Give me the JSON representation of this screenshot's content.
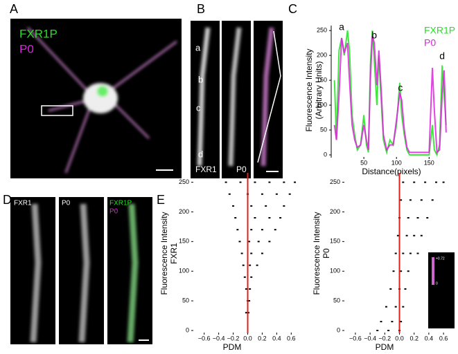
{
  "panels": {
    "A": {
      "label": "A",
      "legend": [
        "FXR1P",
        "P0"
      ]
    },
    "B": {
      "label": "B",
      "letters": [
        "a",
        "b",
        "c",
        "d"
      ],
      "channels": [
        "FXR1",
        "P0"
      ]
    },
    "C": {
      "label": "C"
    },
    "D": {
      "label": "D",
      "channels": [
        "FXR1",
        "P0",
        "FXR1P",
        "P0"
      ]
    },
    "E": {
      "label": "E",
      "inset_scale": [
        "+0.72",
        "0"
      ]
    }
  },
  "chart_data": [
    {
      "type": "line",
      "x_label": "Distance(pixels)",
      "y_label": [
        "Fluorescence Intensity",
        "(Arbitrary Units)"
      ],
      "annotations": [
        "a",
        "b",
        "c",
        "d"
      ],
      "x": [
        5,
        8,
        12,
        16,
        20,
        25,
        28,
        32,
        36,
        40,
        45,
        50,
        54,
        57,
        60,
        63,
        66,
        70,
        73,
        77,
        80,
        85,
        90,
        95,
        100,
        105,
        108,
        112,
        116,
        120,
        140,
        150,
        155,
        158,
        162,
        166,
        170,
        173,
        176
      ],
      "series": [
        {
          "name": "FXR1P",
          "color": "#22e022",
          "values": [
            150,
            30,
            210,
            235,
            200,
            250,
            210,
            80,
            40,
            10,
            20,
            80,
            20,
            5,
            180,
            250,
            190,
            100,
            200,
            100,
            30,
            5,
            30,
            20,
            60,
            145,
            80,
            40,
            10,
            0,
            0,
            0,
            60,
            10,
            0,
            20,
            180,
            120,
            60
          ]
        },
        {
          "name": "P0",
          "color": "#e020e0",
          "values": [
            60,
            30,
            120,
            235,
            205,
            225,
            150,
            60,
            30,
            15,
            20,
            60,
            30,
            10,
            150,
            240,
            225,
            140,
            210,
            120,
            40,
            10,
            20,
            20,
            70,
            125,
            110,
            50,
            15,
            5,
            5,
            5,
            175,
            90,
            5,
            10,
            120,
            170,
            45
          ]
        }
      ],
      "xlim": [
        0,
        190
      ],
      "ylim": [
        0,
        260
      ],
      "xticks": [
        50,
        100,
        150
      ],
      "yticks": [
        0,
        50,
        100,
        150,
        200,
        250
      ]
    },
    {
      "type": "scatter",
      "x_label": "PDM",
      "y_label": [
        "Fluorescence Intensity",
        "FXR1"
      ],
      "color": "#000000",
      "vline": 0,
      "vline_color": "#e0201b",
      "x": [
        -0.3,
        -0.1,
        0.1,
        0.3,
        0.5,
        0.65,
        -0.25,
        0,
        0.2,
        0.4,
        0.58,
        -0.2,
        0.05,
        0.25,
        0.5,
        -0.17,
        0.1,
        0.3,
        0.45,
        -0.14,
        0.05,
        0.2,
        0.38,
        -0.11,
        0.02,
        0.15,
        0.3,
        -0.08,
        0.05,
        0.2,
        -0.06,
        0.03,
        0.13,
        -0.04,
        0.05,
        -0.02,
        0.03,
        0,
        0.02,
        -0.02,
        0.01
      ],
      "values": [
        250,
        250,
        250,
        250,
        250,
        250,
        230,
        230,
        230,
        230,
        230,
        210,
        210,
        210,
        210,
        190,
        190,
        190,
        190,
        170,
        170,
        170,
        170,
        150,
        150,
        150,
        150,
        130,
        130,
        130,
        110,
        110,
        110,
        90,
        90,
        70,
        70,
        50,
        50,
        30,
        30
      ],
      "xlim": [
        -0.75,
        0.75
      ],
      "ylim": [
        0,
        260
      ],
      "xticks": [
        {
          "value": -0.6,
          "label": "−0.6"
        },
        {
          "value": -0.4,
          "label": "−0.4"
        },
        {
          "value": -0.2,
          "label": "−0.2"
        },
        {
          "value": 0,
          "label": "0.0"
        },
        {
          "value": 0.2,
          "label": "0.2"
        },
        {
          "value": 0.4,
          "label": "0.4"
        },
        {
          "value": 0.6,
          "label": "0.6"
        }
      ],
      "yticks": [
        0,
        50,
        100,
        150,
        200,
        250
      ]
    },
    {
      "type": "scatter",
      "x_label": "PDM",
      "y_label": [
        "Fluorescence Intensity",
        "P0"
      ],
      "color": "#000000",
      "vline": 0,
      "vline_color": "#e0201b",
      "x": [
        0.05,
        0.2,
        0.35,
        0.5,
        0.6,
        0.02,
        0.15,
        0.3,
        0.45,
        0,
        0.12,
        0.25,
        0.38,
        -0.02,
        0.1,
        0.2,
        0.3,
        -0.05,
        0.05,
        0.15,
        0.25,
        -0.08,
        0.02,
        0.12,
        -0.12,
        0,
        0.08,
        -0.18,
        -0.05,
        0.05,
        -0.25,
        -0.1,
        0.02,
        -0.3,
        -0.15,
        0
      ],
      "values": [
        250,
        250,
        250,
        250,
        250,
        220,
        220,
        220,
        220,
        190,
        190,
        190,
        190,
        160,
        160,
        160,
        160,
        130,
        130,
        130,
        130,
        100,
        100,
        100,
        70,
        70,
        70,
        40,
        40,
        40,
        15,
        15,
        15,
        0,
        0,
        0
      ],
      "xlim": [
        -0.75,
        0.75
      ],
      "ylim": [
        0,
        260
      ],
      "xticks": [
        {
          "value": -0.6,
          "label": "−0.6"
        },
        {
          "value": -0.4,
          "label": "−0.4"
        },
        {
          "value": -0.2,
          "label": "−0.2"
        },
        {
          "value": 0,
          "label": "0.0"
        },
        {
          "value": 0.2,
          "label": "0.2"
        },
        {
          "value": 0.4,
          "label": "0.4"
        },
        {
          "value": 0.6,
          "label": "0.6"
        }
      ],
      "yticks": [
        0,
        50,
        100,
        150,
        200,
        250
      ]
    }
  ]
}
